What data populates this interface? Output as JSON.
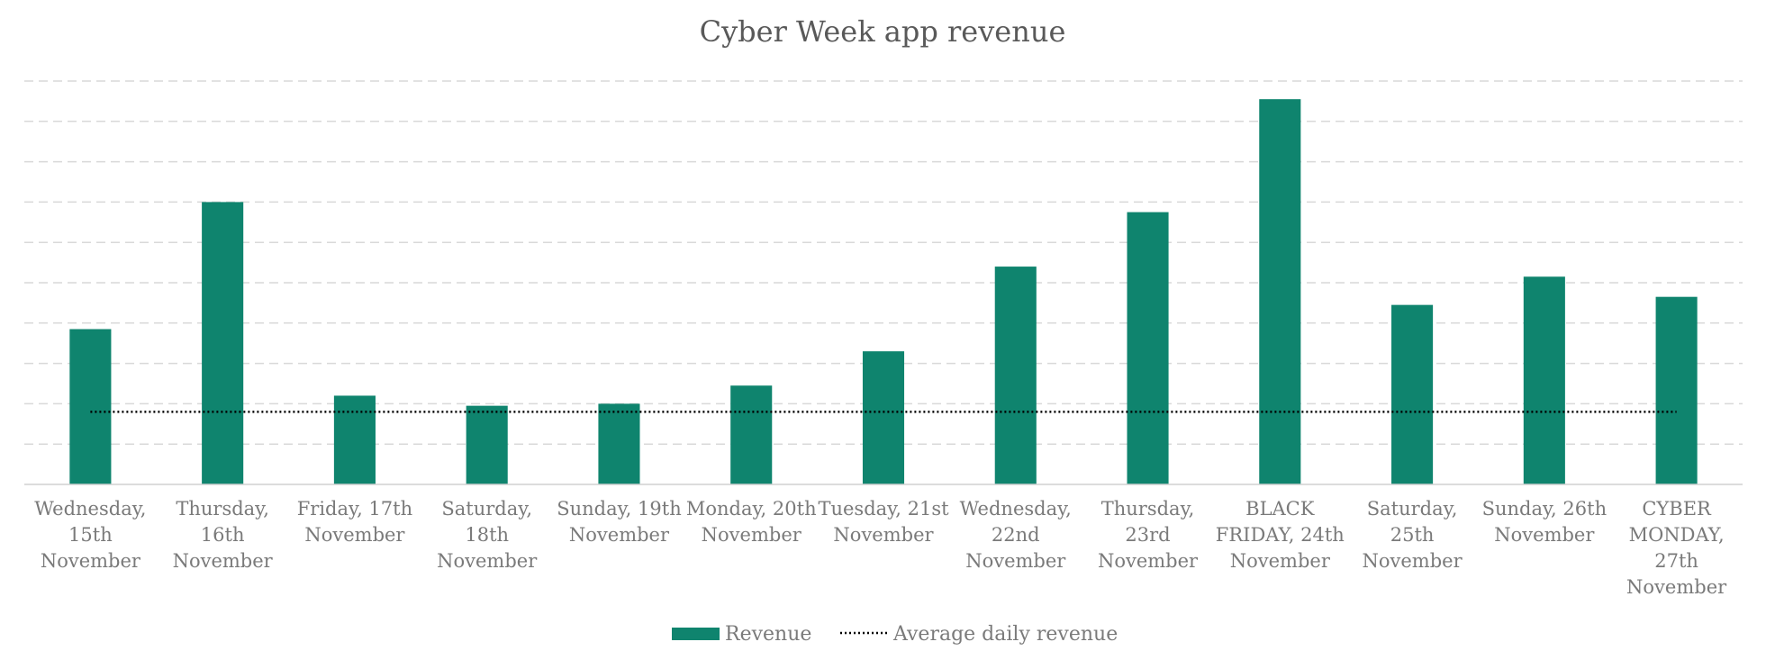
{
  "chart_data": {
    "type": "bar",
    "title": "Cyber Week app revenue",
    "categories": [
      [
        "Wednesday,",
        "15th",
        "November"
      ],
      [
        "Thursday,",
        "16th",
        "November"
      ],
      [
        "Friday, 17th",
        "November"
      ],
      [
        "Saturday,",
        "18th",
        "November"
      ],
      [
        "Sunday, 19th",
        "November"
      ],
      [
        "Monday, 20th",
        "November"
      ],
      [
        "Tuesday, 21st",
        "November"
      ],
      [
        "Wednesday,",
        "22nd",
        "November"
      ],
      [
        "Thursday,",
        "23rd",
        "November"
      ],
      [
        "BLACK",
        "FRIDAY, 24th",
        "November"
      ],
      [
        "Saturday,",
        "25th",
        "November"
      ],
      [
        "Sunday, 26th",
        "November"
      ],
      [
        "CYBER",
        "MONDAY,",
        "27th",
        "November"
      ]
    ],
    "series": [
      {
        "name": "Revenue",
        "type": "bar",
        "color": "#0f846e",
        "values": [
          3.85,
          7.0,
          2.2,
          1.95,
          2.0,
          2.45,
          3.3,
          5.4,
          6.75,
          9.55,
          4.45,
          5.15,
          4.65
        ]
      },
      {
        "name": "Average daily revenue",
        "type": "line",
        "style": "dotted",
        "color": "#000000",
        "values": [
          1.8,
          1.8,
          1.8,
          1.8,
          1.8,
          1.8,
          1.8,
          1.8,
          1.8,
          1.8,
          1.8,
          1.8,
          1.8
        ]
      }
    ],
    "ylim": [
      0,
      10
    ],
    "grid": true,
    "gridlines": 10,
    "legend_position": "bottom",
    "xlabel": "",
    "ylabel": ""
  }
}
